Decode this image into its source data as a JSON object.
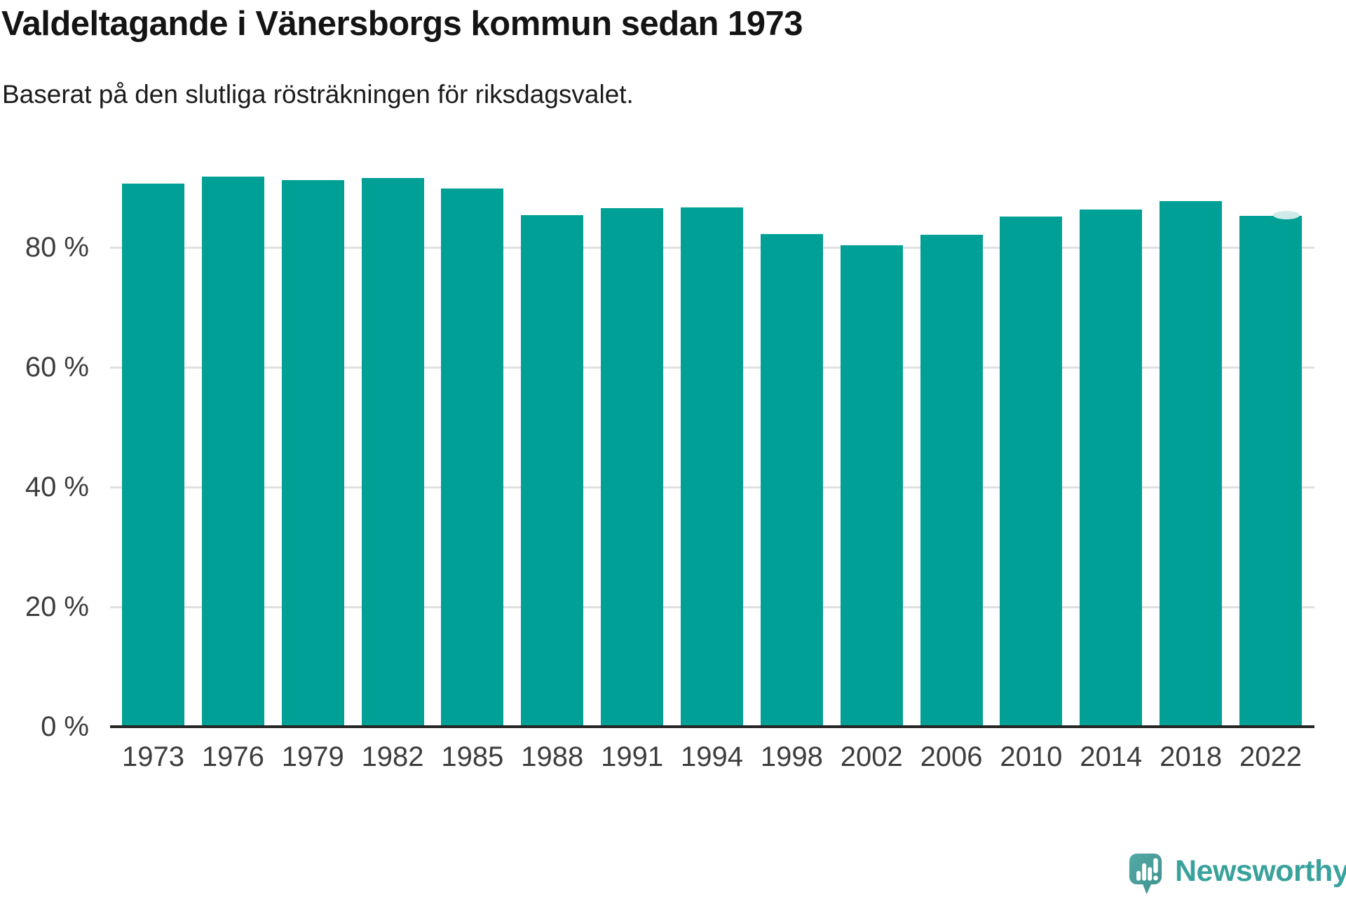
{
  "header": {
    "title": "Valdeltagande i Vänersborgs kommun sedan 1973",
    "subtitle": "Baserat på den slutliga rösträkningen för riksdagsvalet."
  },
  "chart_data": {
    "type": "bar",
    "title": "Valdeltagande i Vänersborgs kommun sedan 1973",
    "subtitle": "Baserat på den slutliga rösträkningen för riksdagsvalet.",
    "categories": [
      "1973",
      "1976",
      "1979",
      "1982",
      "1985",
      "1988",
      "1991",
      "1994",
      "1998",
      "2002",
      "2006",
      "2010",
      "2014",
      "2018",
      "2022"
    ],
    "values": [
      90.6,
      91.8,
      91.2,
      91.6,
      89.8,
      85.4,
      86.5,
      86.7,
      82.2,
      80.4,
      82.1,
      85.1,
      86.3,
      87.7,
      85.3
    ],
    "unit": "%",
    "yticks": [
      0,
      20,
      40,
      60,
      80
    ],
    "ytick_suffix": " %",
    "ylim": [
      0,
      100
    ],
    "grid": true,
    "legend": "none",
    "latest_bar_notch": true,
    "colors": {
      "bar": "#00a096",
      "grid": "#e0e0e0",
      "axis": "#262626",
      "labels": "#3d3d3d",
      "notch": "#cfeae8"
    }
  },
  "footer": {
    "brand": "Newsworthy",
    "brand_color": "#3aa29d",
    "logo_gradient_start": "#53aaa6",
    "logo_gradient_end": "#3f918d"
  }
}
